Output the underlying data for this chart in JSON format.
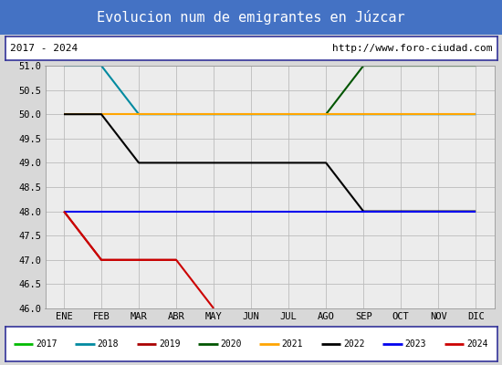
{
  "title": "Evolucion num de emigrantes en Júzcar",
  "subtitle_left": "2017 - 2024",
  "subtitle_right": "http://www.foro-ciudad.com",
  "months": [
    "ENE",
    "FEB",
    "MAR",
    "ABR",
    "MAY",
    "JUN",
    "JUL",
    "AGO",
    "SEP",
    "OCT",
    "NOV",
    "DIC"
  ],
  "ylim": [
    46.0,
    51.0
  ],
  "yticks": [
    46.0,
    46.5,
    47.0,
    47.5,
    48.0,
    48.5,
    49.0,
    49.5,
    50.0,
    50.5,
    51.0
  ],
  "series": {
    "2017": {
      "color": "#00bb00",
      "values": [
        null,
        null,
        null,
        null,
        null,
        null,
        null,
        null,
        51,
        51,
        51,
        51
      ]
    },
    "2018": {
      "color": "#008aa0",
      "values": [
        51,
        51,
        50,
        50,
        50,
        50,
        50,
        50,
        50,
        50,
        50,
        50
      ]
    },
    "2019": {
      "color": "#aa0000",
      "values": [
        48,
        47,
        47,
        47,
        null,
        null,
        null,
        null,
        null,
        null,
        null,
        null
      ]
    },
    "2020": {
      "color": "#005500",
      "values": [
        null,
        null,
        null,
        null,
        null,
        null,
        null,
        50,
        51,
        51,
        51,
        51
      ]
    },
    "2021": {
      "color": "#ffa500",
      "values": [
        50,
        50,
        50,
        50,
        50,
        50,
        50,
        50,
        50,
        50,
        50,
        50
      ]
    },
    "2022": {
      "color": "#000000",
      "values": [
        50,
        50,
        49,
        49,
        49,
        49,
        49,
        49,
        48,
        48,
        48,
        48
      ]
    },
    "2023": {
      "color": "#0000ee",
      "values": [
        48,
        48,
        48,
        48,
        48,
        48,
        48,
        48,
        48,
        48,
        48,
        48
      ]
    },
    "2024": {
      "color": "#cc0000",
      "values": [
        48,
        47,
        47,
        47,
        46,
        null,
        null,
        null,
        null,
        null,
        null,
        null
      ]
    }
  },
  "legend_order": [
    "2017",
    "2018",
    "2019",
    "2020",
    "2021",
    "2022",
    "2023",
    "2024"
  ],
  "fig_bg_color": "#d8d8d8",
  "plot_bg_color": "#ececec",
  "title_bg_color": "#4472c4",
  "title_text_color": "#ffffff",
  "box_bg_color": "#ffffff",
  "box_border_color": "#333399"
}
